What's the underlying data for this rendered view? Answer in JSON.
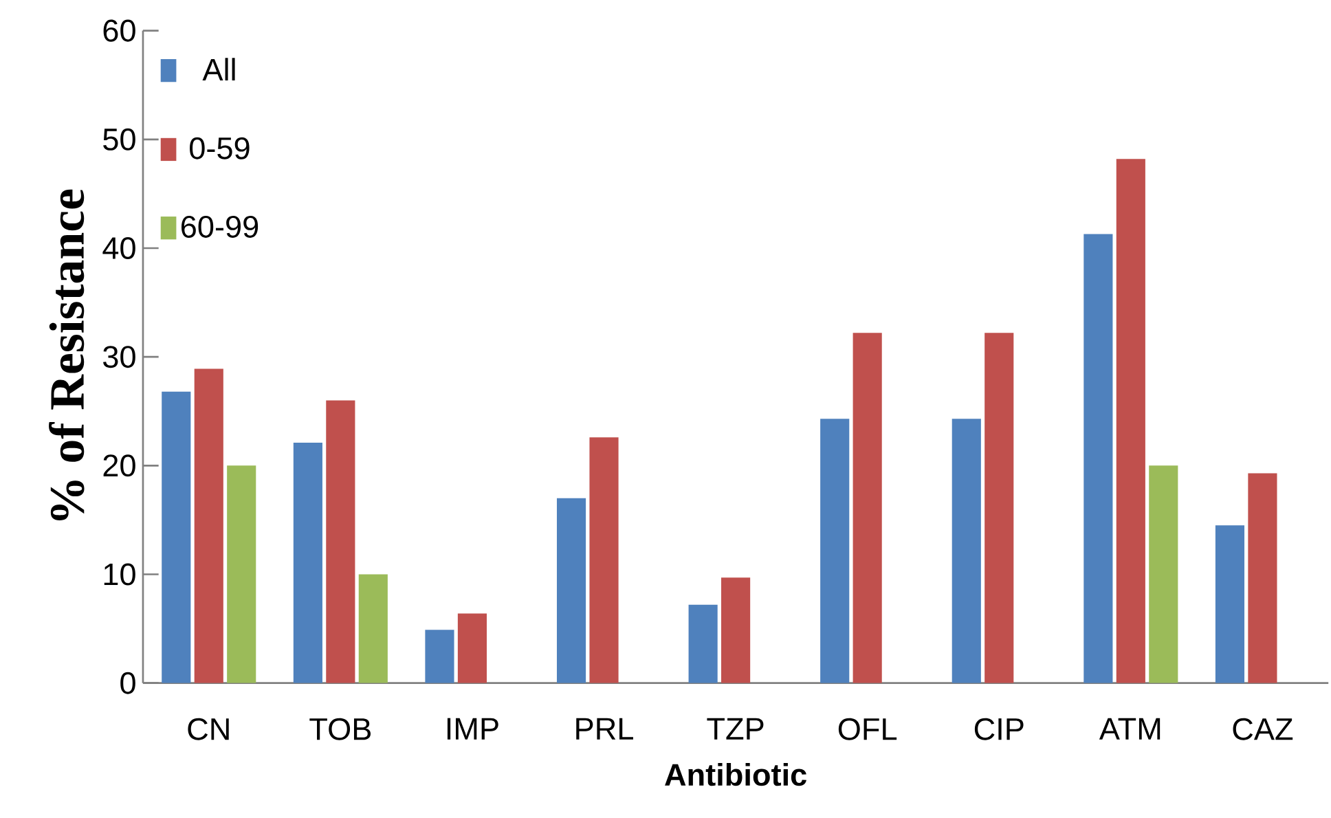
{
  "chart_data": {
    "type": "bar",
    "xlabel": "Antibiotic",
    "ylabel": "% of Resistance",
    "categories": [
      "CN",
      "TOB",
      "IMP",
      "PRL",
      "TZP",
      "OFL",
      "CIP",
      "ATM",
      "CAZ"
    ],
    "series": [
      {
        "name": "All",
        "color": "#4f81bd",
        "values": [
          26.8,
          22.1,
          4.9,
          17.0,
          7.2,
          24.3,
          24.3,
          41.3,
          14.5
        ]
      },
      {
        "name": "0-59",
        "color": "#c0504d",
        "values": [
          28.9,
          26.0,
          6.4,
          22.6,
          9.7,
          32.2,
          32.2,
          48.2,
          19.3
        ]
      },
      {
        "name": "60-99",
        "color": "#9bbb59",
        "values": [
          20.0,
          10.0,
          0,
          0,
          0,
          0,
          0,
          20.0,
          0
        ]
      }
    ],
    "ylim": [
      0,
      60
    ],
    "yticks": [
      0,
      10,
      20,
      30,
      40,
      50,
      60
    ],
    "grid": false,
    "legend": "top left"
  }
}
